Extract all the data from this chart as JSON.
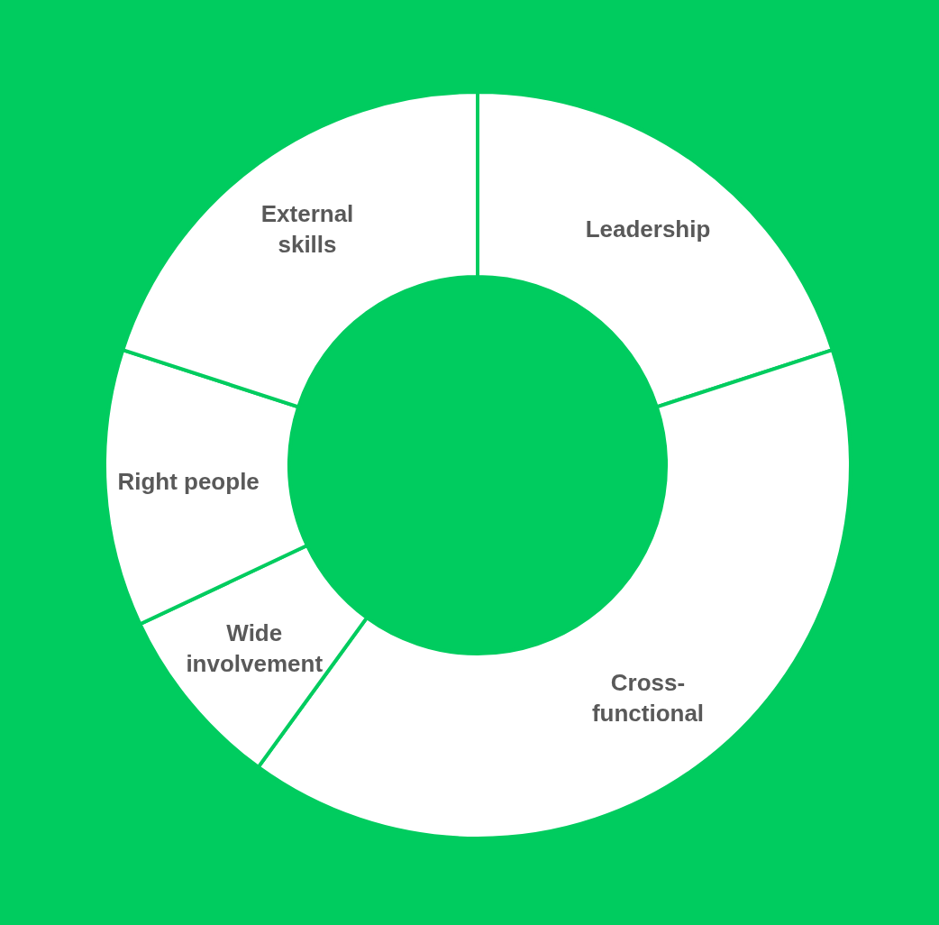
{
  "chart_data": {
    "type": "donut",
    "categories": [
      "Leadership",
      "Cross-\nfunctional",
      "Wide\ninvolvement",
      "Right people",
      "External\nskills"
    ],
    "values": [
      20,
      40,
      8,
      12,
      20
    ],
    "colors": [
      "#ffffff",
      "#ffffff",
      "#ffffff",
      "#ffffff",
      "#ffffff"
    ],
    "legend": false
  }
}
